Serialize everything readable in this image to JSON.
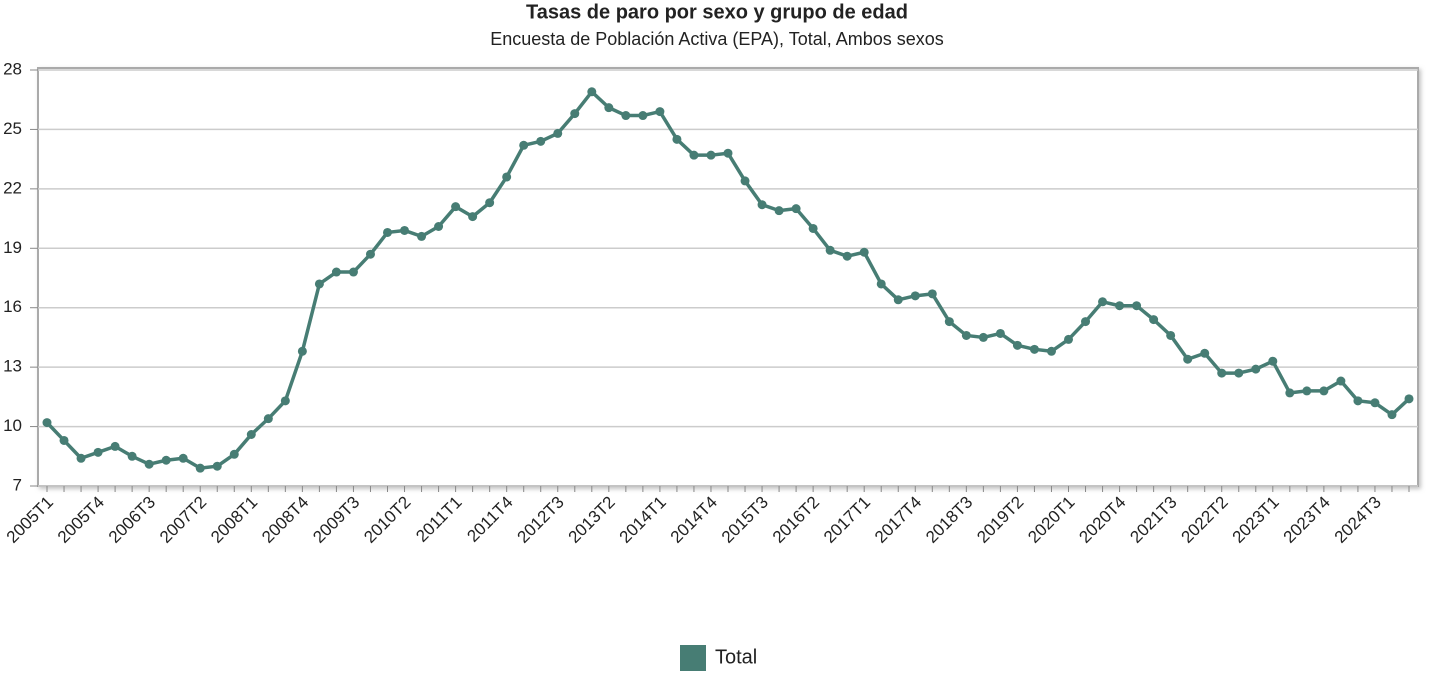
{
  "chart_data": {
    "type": "line",
    "title": "Tasas de paro por sexo y grupo de edad",
    "subtitle": "Encuesta de Población Activa (EPA), Total, Ambos sexos",
    "categories": [
      "2005T1",
      null,
      null,
      "2005T4",
      null,
      null,
      "2006T3",
      null,
      null,
      "2007T2",
      null,
      null,
      "2008T1",
      null,
      null,
      "2008T4",
      null,
      null,
      "2009T3",
      null,
      null,
      "2010T2",
      null,
      null,
      "2011T1",
      null,
      null,
      "2011T4",
      null,
      null,
      "2012T3",
      null,
      null,
      "2013T2",
      null,
      null,
      "2014T1",
      null,
      null,
      "2014T4",
      null,
      null,
      "2015T3",
      null,
      null,
      "2016T2",
      null,
      null,
      "2017T1",
      null,
      null,
      "2017T4",
      null,
      null,
      "2018T3",
      null,
      null,
      "2019T2",
      null,
      null,
      "2020T1",
      null,
      null,
      "2020T4",
      null,
      null,
      "2021T3",
      null,
      null,
      "2022T2",
      null,
      null,
      "2023T1",
      null,
      null,
      "2023T4",
      null,
      null,
      "2024T3",
      null,
      null
    ],
    "series": [
      {
        "name": "Total",
        "color": "#477d74",
        "values": [
          10.2,
          9.3,
          8.4,
          8.7,
          9.0,
          8.5,
          8.1,
          8.3,
          8.4,
          7.9,
          8.0,
          8.6,
          9.6,
          10.4,
          11.3,
          13.8,
          17.2,
          17.8,
          17.8,
          18.7,
          19.8,
          19.9,
          19.6,
          20.1,
          21.1,
          20.6,
          21.3,
          22.6,
          24.2,
          24.4,
          24.8,
          25.8,
          26.9,
          26.1,
          25.7,
          25.7,
          25.9,
          24.5,
          23.7,
          23.7,
          23.8,
          22.4,
          21.2,
          20.9,
          21.0,
          20.0,
          18.9,
          18.6,
          18.8,
          17.2,
          16.4,
          16.6,
          16.7,
          15.3,
          14.6,
          14.5,
          14.7,
          14.1,
          13.9,
          13.8,
          14.4,
          15.3,
          16.3,
          16.1,
          16.1,
          15.4,
          14.6,
          13.4,
          13.7,
          12.7,
          12.7,
          12.9,
          13.3,
          11.7,
          11.8,
          11.8,
          12.3,
          11.3,
          11.2,
          10.6,
          11.4
        ]
      }
    ],
    "ylim": [
      7,
      28
    ],
    "yticks": [
      7,
      10,
      13,
      16,
      19,
      22,
      25,
      28
    ],
    "grid": true,
    "legend": "bottom"
  }
}
